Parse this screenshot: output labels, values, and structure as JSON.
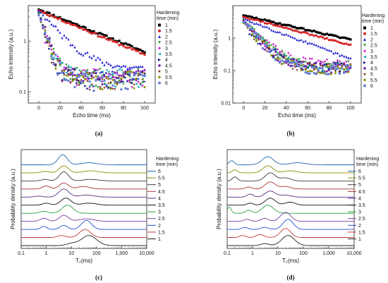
{
  "figure": {
    "panel_labels": [
      "(a)",
      "(b)",
      "(c)",
      "(d)"
    ],
    "legend_title_line1": "Hardening",
    "legend_title_line2": "time (min)"
  },
  "chart_data": [
    {
      "id": "a",
      "type": "scatter",
      "xlabel": "Echo time (ms)",
      "ylabel": "Echo intensity (a.u.)",
      "xlim": [
        -10,
        110
      ],
      "ylim": [
        0.06,
        5
      ],
      "log_y": true,
      "xticks": [
        "0",
        "20",
        "40",
        "60",
        "80",
        "100"
      ],
      "yticks": [
        "0.1",
        "1"
      ],
      "legend_position": "right",
      "series": [
        {
          "name": "1",
          "color": "#000000",
          "marker": "square",
          "y0": 4.2,
          "tau": 52,
          "floor": 0.0,
          "noise": 0.05
        },
        {
          "name": "1.5",
          "color": "#d62728",
          "marker": "circle",
          "y0": 4.0,
          "tau": 50,
          "floor": 0.0,
          "noise": 0.05
        },
        {
          "name": "2",
          "color": "#1f1fd0",
          "marker": "triangle-up",
          "y0": 3.8,
          "tau": 17,
          "floor": 0.28,
          "noise": 0.15
        },
        {
          "name": "2.5",
          "color": "#2ca02c",
          "marker": "triangle-down",
          "y0": 3.5,
          "tau": 6,
          "floor": 0.2,
          "noise": 0.4
        },
        {
          "name": "3",
          "color": "#d01fd0",
          "marker": "diamond",
          "y0": 3.5,
          "tau": 6,
          "floor": 0.2,
          "noise": 0.4
        },
        {
          "name": "3.5",
          "color": "#17a2b8",
          "marker": "triangle-left",
          "y0": 3.4,
          "tau": 6,
          "floor": 0.2,
          "noise": 0.4
        },
        {
          "name": "4",
          "color": "#0b1f8f",
          "marker": "triangle-right",
          "y0": 3.4,
          "tau": 6,
          "floor": 0.19,
          "noise": 0.4
        },
        {
          "name": "4.5",
          "color": "#7a1fa2",
          "marker": "hexagon",
          "y0": 3.3,
          "tau": 6,
          "floor": 0.19,
          "noise": 0.4
        },
        {
          "name": "5",
          "color": "#6b1010",
          "marker": "star",
          "y0": 3.3,
          "tau": 6,
          "floor": 0.18,
          "noise": 0.4
        },
        {
          "name": "5.5",
          "color": "#8c8c00",
          "marker": "pentagon",
          "y0": 3.2,
          "tau": 6,
          "floor": 0.18,
          "noise": 0.4
        },
        {
          "name": "6",
          "color": "#6b7fd7",
          "marker": "circle",
          "y0": 3.2,
          "tau": 6,
          "floor": 0.17,
          "noise": 0.4
        }
      ]
    },
    {
      "id": "b",
      "type": "scatter",
      "xlabel": "Echo time (ms)",
      "ylabel": "Echo intensity (a.u.)",
      "xlim": [
        -10,
        110
      ],
      "ylim": [
        0.01,
        10
      ],
      "log_y": true,
      "xticks": [
        "0",
        "20",
        "40",
        "60",
        "80",
        "100"
      ],
      "yticks": [
        "0.01",
        "0.1",
        "1"
      ],
      "legend_position": "right",
      "series": [
        {
          "name": "1",
          "color": "#000000",
          "marker": "square",
          "y0": 5.0,
          "tau": 58,
          "floor": 0.0,
          "noise": 0.05
        },
        {
          "name": "1.5",
          "color": "#d62728",
          "marker": "circle",
          "y0": 4.5,
          "tau": 50,
          "floor": 0.0,
          "noise": 0.05
        },
        {
          "name": "2",
          "color": "#1f1fd0",
          "marker": "triangle-up",
          "y0": 4.0,
          "tau": 35,
          "floor": 0.0,
          "noise": 0.08
        },
        {
          "name": "2.5",
          "color": "#2ca02c",
          "marker": "triangle-down",
          "y0": 3.4,
          "tau": 12,
          "floor": 0.14,
          "noise": 0.35
        },
        {
          "name": "3",
          "color": "#d01fd0",
          "marker": "diamond",
          "y0": 3.4,
          "tau": 12,
          "floor": 0.16,
          "noise": 0.35
        },
        {
          "name": "3.5",
          "color": "#17a2b8",
          "marker": "triangle-left",
          "y0": 3.2,
          "tau": 11,
          "floor": 0.13,
          "noise": 0.35
        },
        {
          "name": "4",
          "color": "#0b1f8f",
          "marker": "triangle-right",
          "y0": 3.2,
          "tau": 11,
          "floor": 0.13,
          "noise": 0.35
        },
        {
          "name": "4.5",
          "color": "#7a1fa2",
          "marker": "hexagon",
          "y0": 3.1,
          "tau": 11,
          "floor": 0.12,
          "noise": 0.35
        },
        {
          "name": "5",
          "color": "#6b1010",
          "marker": "star",
          "y0": 3.1,
          "tau": 11,
          "floor": 0.12,
          "noise": 0.35
        },
        {
          "name": "5.5",
          "color": "#8c8c00",
          "marker": "pentagon",
          "y0": 3.0,
          "tau": 11,
          "floor": 0.11,
          "noise": 0.35
        },
        {
          "name": "6",
          "color": "#6b7fd7",
          "marker": "circle",
          "y0": 3.0,
          "tau": 11,
          "floor": 0.11,
          "noise": 0.35
        }
      ]
    },
    {
      "id": "c",
      "type": "line",
      "xlabel": "T₂(ms)",
      "ylabel": "Probability density (a.u.)",
      "log_x": true,
      "xlim": [
        0.1,
        10000
      ],
      "xticks": [
        "0.1",
        "1",
        "10",
        "100",
        "1,000",
        "10,000"
      ],
      "legend_position": "right",
      "series": [
        {
          "name": "6",
          "color": "#2166ac",
          "peaks": [
            [
              4.5,
              1.0,
              0.18
            ],
            [
              50,
              0.2,
              0.3
            ]
          ]
        },
        {
          "name": "5.5",
          "color": "#8c8c00",
          "peaks": [
            [
              5,
              0.7,
              0.18
            ],
            [
              0.9,
              0.15,
              0.15
            ],
            [
              60,
              0.2,
              0.3
            ]
          ]
        },
        {
          "name": "5",
          "color": "#3a3a3a",
          "peaks": [
            [
              5,
              0.9,
              0.18
            ],
            [
              0.9,
              0.15,
              0.15
            ],
            [
              60,
              0.15,
              0.3
            ]
          ]
        },
        {
          "name": "4.5",
          "color": "#a83232",
          "peaks": [
            [
              5,
              0.6,
              0.18
            ],
            [
              1.0,
              0.3,
              0.15
            ],
            [
              30,
              0.25,
              0.25
            ]
          ]
        },
        {
          "name": "4",
          "color": "#5a2d82",
          "peaks": [
            [
              5,
              0.8,
              0.2
            ],
            [
              0.5,
              0.1,
              0.15
            ],
            [
              40,
              0.2,
              0.3
            ]
          ]
        },
        {
          "name": "3.5",
          "color": "#111111",
          "peaks": [
            [
              6,
              0.7,
              0.2
            ],
            [
              1.0,
              0.2,
              0.15
            ],
            [
              50,
              0.2,
              0.3
            ]
          ]
        },
        {
          "name": "3",
          "color": "#2a9d3a",
          "peaks": [
            [
              7,
              0.8,
              0.22
            ],
            [
              0.8,
              0.2,
              0.15
            ]
          ]
        },
        {
          "name": "2.5",
          "color": "#7b3fa0",
          "peaks": [
            [
              5,
              0.6,
              0.18
            ],
            [
              0.8,
              0.3,
              0.15
            ],
            [
              40,
              0.25,
              0.3
            ]
          ]
        },
        {
          "name": "2",
          "color": "#1f4fd0",
          "peaks": [
            [
              40,
              0.9,
              0.2
            ],
            [
              5,
              0.4,
              0.15
            ],
            [
              0.8,
              0.3,
              0.12
            ]
          ]
        },
        {
          "name": "1.5",
          "color": "#c23b3b",
          "peaks": [
            [
              35,
              0.8,
              0.22
            ],
            [
              4,
              0.2,
              0.15
            ]
          ]
        },
        {
          "name": "1",
          "color": "#222222",
          "peaks": [
            [
              50,
              1.0,
              0.3
            ],
            [
              10,
              0.2,
              0.2
            ]
          ]
        }
      ]
    },
    {
      "id": "d",
      "type": "line",
      "xlabel": "T₂(ms)",
      "ylabel": "Probability density (a.u.)",
      "log_x": true,
      "xlim": [
        0.1,
        10000
      ],
      "xticks": [
        "0.1",
        "1",
        "10",
        "100",
        "1,000",
        "10,000"
      ],
      "legend_position": "right",
      "series": [
        {
          "name": "6",
          "color": "#2166ac",
          "peaks": [
            [
              4,
              0.8,
              0.22
            ],
            [
              0.15,
              0.4,
              0.1
            ],
            [
              60,
              0.2,
              0.3
            ]
          ]
        },
        {
          "name": "5.5",
          "color": "#8c8c00",
          "peaks": [
            [
              4,
              0.7,
              0.2
            ],
            [
              0.2,
              0.3,
              0.1
            ],
            [
              30,
              0.2,
              0.25
            ]
          ]
        },
        {
          "name": "5",
          "color": "#3a3a3a",
          "peaks": [
            [
              5,
              0.8,
              0.2
            ],
            [
              0.2,
              0.4,
              0.1
            ],
            [
              20,
              0.3,
              0.2
            ]
          ]
        },
        {
          "name": "4.5",
          "color": "#a83232",
          "peaks": [
            [
              5,
              0.7,
              0.2
            ],
            [
              0.7,
              0.2,
              0.12
            ],
            [
              20,
              0.25,
              0.2
            ]
          ]
        },
        {
          "name": "4",
          "color": "#5a2d82",
          "peaks": [
            [
              5,
              0.6,
              0.2
            ],
            [
              0.8,
              0.3,
              0.12
            ],
            [
              20,
              0.2,
              0.2
            ]
          ]
        },
        {
          "name": "3.5",
          "color": "#111111",
          "peaks": [
            [
              5,
              0.7,
              0.2
            ],
            [
              0.8,
              0.2,
              0.12
            ],
            [
              30,
              0.3,
              0.2
            ]
          ]
        },
        {
          "name": "3",
          "color": "#2a9d3a",
          "peaks": [
            [
              4,
              0.8,
              0.22
            ],
            [
              0.7,
              0.3,
              0.12
            ],
            [
              0.12,
              0.6,
              0.08
            ]
          ]
        },
        {
          "name": "2.5",
          "color": "#7b3fa0",
          "peaks": [
            [
              20,
              0.9,
              0.2
            ],
            [
              3,
              0.3,
              0.15
            ],
            [
              0.6,
              0.2,
              0.12
            ]
          ]
        },
        {
          "name": "2",
          "color": "#1f4fd0",
          "peaks": [
            [
              25,
              1.0,
              0.2
            ],
            [
              3,
              0.2,
              0.15
            ],
            [
              0.5,
              0.2,
              0.12
            ]
          ]
        },
        {
          "name": "1.5",
          "color": "#c23b3b",
          "peaks": [
            [
              20,
              0.9,
              0.2
            ],
            [
              2,
              0.3,
              0.15
            ],
            [
              0.4,
              0.2,
              0.12
            ]
          ]
        },
        {
          "name": "1",
          "color": "#222222",
          "peaks": [
            [
              25,
              1.0,
              0.25
            ],
            [
              3,
              0.2,
              0.15
            ]
          ]
        }
      ]
    }
  ]
}
